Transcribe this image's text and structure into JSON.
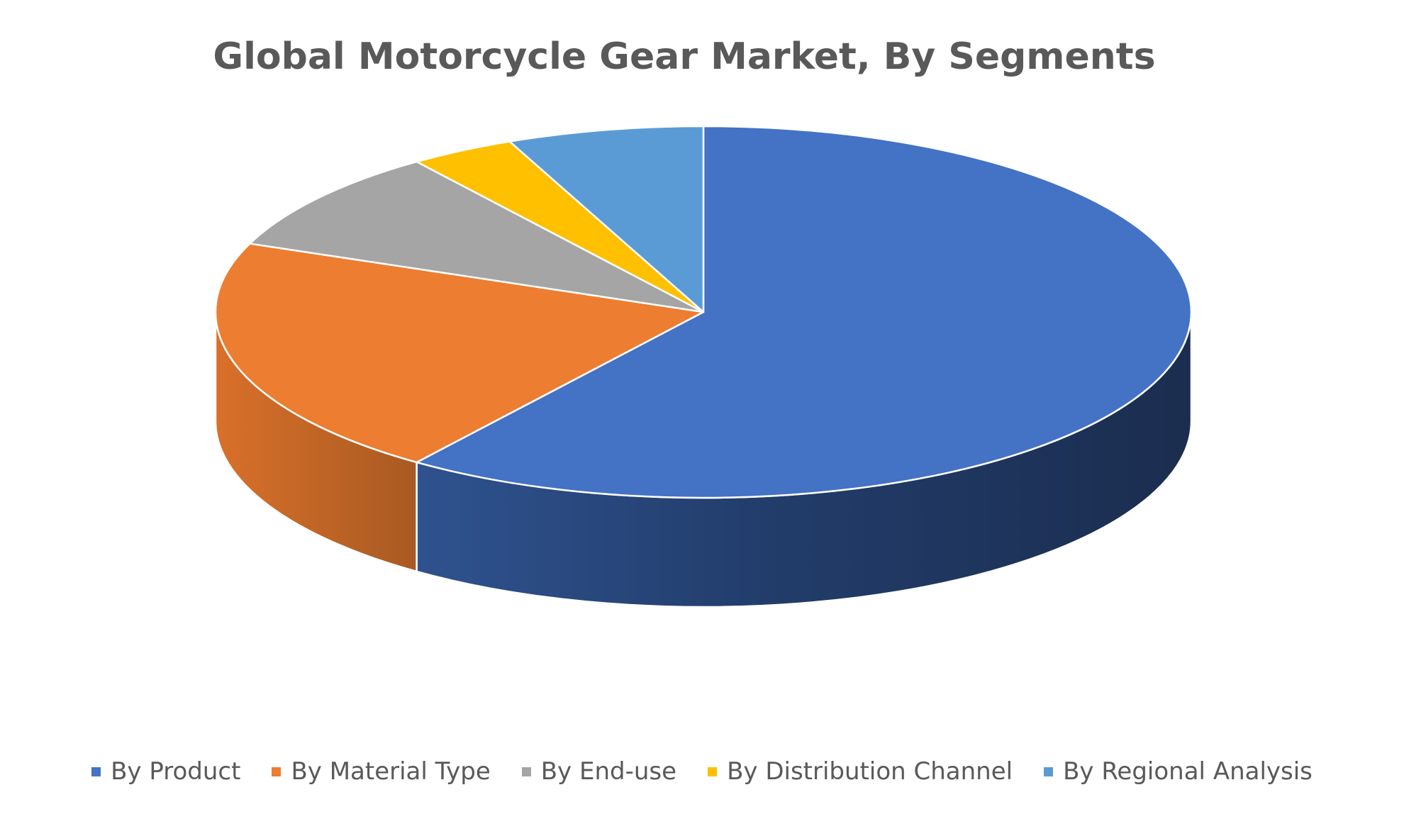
{
  "chart_data": {
    "type": "pie",
    "title": "Global Motorcycle Gear Market, By Segments",
    "style": "3d",
    "legend_position": "bottom",
    "slices": [
      {
        "label": "By Product",
        "value": 60,
        "color": "#4472C4"
      },
      {
        "label": "By Material Type",
        "value": 21,
        "color": "#ED7D31"
      },
      {
        "label": "By End-use",
        "value": 9,
        "color": "#A5A5A5"
      },
      {
        "label": "By Distribution Channel",
        "value": 3.5,
        "color": "#FFC000"
      },
      {
        "label": "By Regional Analysis",
        "value": 6.5,
        "color": "#5B9BD5"
      }
    ]
  }
}
